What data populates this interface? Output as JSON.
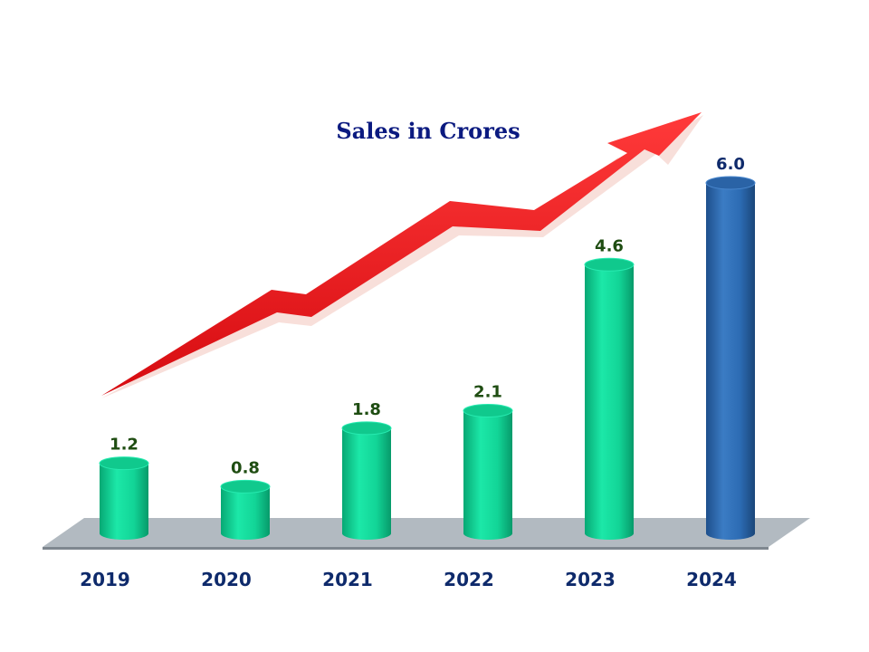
{
  "chart_data": {
    "type": "bar",
    "title": "Sales in Crores",
    "categories": [
      "2019",
      "2020",
      "2021",
      "2022",
      "2023",
      "2024"
    ],
    "values": [
      1.2,
      0.8,
      1.8,
      2.1,
      4.6,
      6.0
    ],
    "value_labels": [
      "1.2",
      "0.8",
      "1.8",
      "2.1",
      "4.6",
      "6.0"
    ],
    "xlabel": "",
    "ylabel": "",
    "ylim": [
      0,
      6
    ],
    "grid": false,
    "legend": "none",
    "bar_shape": "cylinder",
    "colors": {
      "default_bar": "#14d89a",
      "highlight_bar": "#2c6bb3",
      "default_label": "#1f4d12",
      "highlight_label": "#0e2a6b",
      "floor": "#b0b8bf",
      "trend_arrow": "#e8181c",
      "title": "#0b1a80"
    },
    "highlight_index": 5,
    "decorations": [
      "trend-arrow"
    ]
  }
}
